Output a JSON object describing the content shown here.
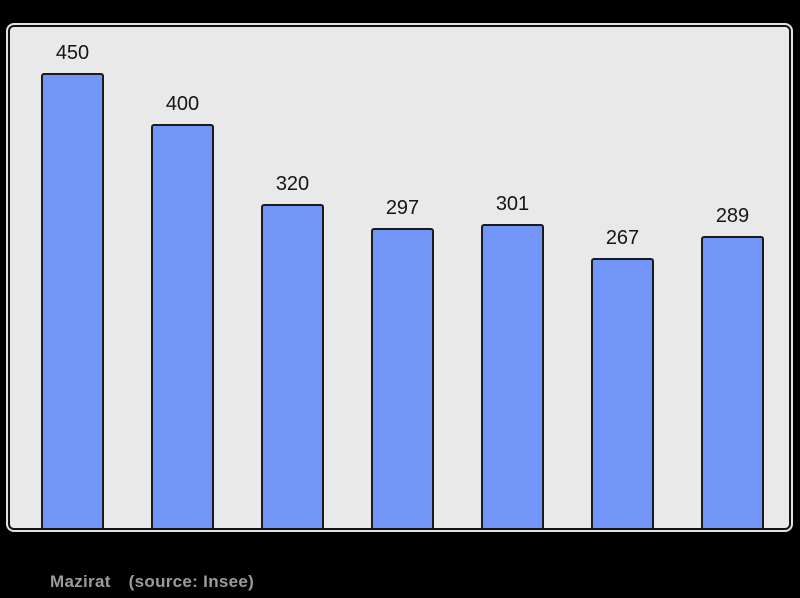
{
  "page": {
    "background": "#000000"
  },
  "panel": {
    "background": "#e9e9e9",
    "border_color": "#141414",
    "halo_color": "#e3e3e3"
  },
  "caption": {
    "commune": "Mazirat",
    "source": "(source: Insee)",
    "color": "#9b9b9b"
  },
  "chart_data": {
    "type": "bar",
    "values": [
      450,
      400,
      320,
      297,
      301,
      267,
      289
    ],
    "data_labels": [
      "450",
      "400",
      "320",
      "297",
      "301",
      "267",
      "289"
    ],
    "title": "",
    "xlabel": "",
    "ylabel": "",
    "ylim": [
      0,
      500
    ],
    "x_tick_labels": [],
    "grid": false,
    "legend": false,
    "axes_visible": false,
    "data_labels_shown": true,
    "bar_color": "#7196f8",
    "bar_border_color": "#1b1b1b",
    "label_color": "#151515"
  }
}
